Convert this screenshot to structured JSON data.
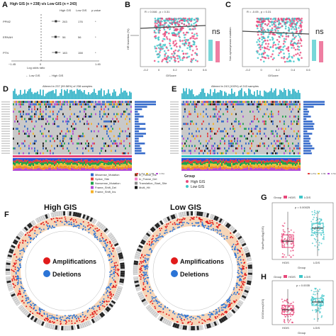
{
  "panel_labels": {
    "a": "A",
    "b": "B",
    "c": "C",
    "d": "D",
    "e": "E",
    "f": "F",
    "g": "G",
    "h": "H"
  },
  "colors": {
    "low_gis": "#3fc6c9",
    "high_gis": "#e8477a",
    "amplifications": "#e11b1b",
    "deletions": "#2b74d6",
    "missense": "#2f66c9",
    "splice": "#e33c3c",
    "nonsense": "#1ea14a",
    "frameshift_del": "#b24bd6",
    "frameshift_ins": "#f5b025",
    "inframe_ins": "#7a3f18",
    "inframe_del": "#f47fc8",
    "translation_start": "#888888",
    "multi_hit": "#111111"
  },
  "panel_a": {
    "title": "High GIS (n = 238) v/s Low GIS (n = 243)",
    "headers": [
      "High GIS",
      "Low GIS",
      "p-value"
    ],
    "genes": [
      "PPM2",
      "ERNAH",
      "PTN"
    ],
    "high_values": [
      "263",
      "56",
      "183"
    ],
    "low_values": [
      "176",
      "56",
      "158"
    ],
    "pvalues": [
      "*",
      "*",
      "*"
    ],
    "axis_left": "−1.45",
    "axis_right": "1.45",
    "axis_zero": "0",
    "xlabel": "Log odds ratio",
    "legend_low": "← Low GIS",
    "legend_high": "→ High GIS"
  },
  "panel_b": {
    "stat": "R = 0.046 , p = 0.31",
    "ylabel": "HR Insertion (%)",
    "xlabel": "GIScore",
    "ns": "ns",
    "xticks": [
      "-0.2",
      "0",
      "0.2",
      "0.4",
      "0.6"
    ]
  },
  "panel_c": {
    "stat": "R = -0.05 , p = 0.31",
    "ylabel": "Non-synonymous mutation",
    "xlabel": "GIScore",
    "ns": "ns",
    "xticks": [
      "-0.2",
      "0",
      "0.2",
      "0.4",
      "0.6"
    ]
  },
  "panel_d": {
    "title": "Altered in 237 (99.58%) of 238 samples"
  },
  "panel_e": {
    "title": "Altered in 243 (100%) of 243 samples"
  },
  "legend_mut": [
    "Missense_Mutation",
    "Splice_Site",
    "Nonsense_Mutation",
    "Frame_Shift_Del",
    "Frame_Shift_Ins",
    "In_Frame_Ins",
    "In_Frame_Del",
    "Translation_Start_Site",
    "Multi_Hit"
  ],
  "legend_group": {
    "title": "Group",
    "items": [
      "High GIS",
      "Low GIS"
    ]
  },
  "legend_sub": [
    "C>A",
    "C>G",
    "C>T",
    "T>A",
    "T>C",
    "T>G"
  ],
  "panel_f": {
    "left_title": "High GIS",
    "right_title": "Low GIS",
    "amp": "Amplifications",
    "del": "Deletions"
  },
  "panel_g": {
    "legend_title": "Group",
    "legend_items": [
      "HGIS",
      "LGIS"
    ],
    "pval": "p = 0.00025",
    "ylabel": "MaxPhyloSig(GIS)",
    "xlabel": "Group",
    "xticks": [
      "HGIS",
      "LGIS"
    ]
  },
  "panel_h": {
    "legend_title": "Group",
    "legend_items": [
      "HGIS",
      "LGIS"
    ],
    "pval": "p = 0.0035",
    "ylabel": "GISGenes(GIS)",
    "xlabel": "Group",
    "xticks": [
      "HGIS",
      "LGIS"
    ]
  },
  "chart_data": [
    {
      "type": "forest",
      "panel": "A",
      "genes": [
        "PPM2",
        "ERNAH",
        "PTN"
      ],
      "log_odds_ratio": [
        0.02,
        0.01,
        0.03
      ],
      "xlim": [
        -1.45,
        1.45
      ]
    },
    {
      "type": "scatter",
      "panel": "B",
      "xlabel": "GIScore",
      "ylabel": "HR Insertion (%)",
      "r": 0.046,
      "p": 0.31,
      "xlim": [
        -0.3,
        0.7
      ]
    },
    {
      "type": "scatter",
      "panel": "C",
      "xlabel": "GIScore",
      "ylabel": "Non-synonymous mutation",
      "r": -0.05,
      "p": 0.31,
      "xlim": [
        -0.3,
        0.7
      ]
    },
    {
      "type": "box",
      "panel": "G",
      "categories": [
        "HGIS",
        "LGIS"
      ],
      "medians": [
        0.35,
        0.62
      ],
      "q1": [
        0.22,
        0.52
      ],
      "q3": [
        0.48,
        0.72
      ],
      "p": 0.00025
    },
    {
      "type": "box",
      "panel": "H",
      "categories": [
        "HGIS",
        "LGIS"
      ],
      "medians": [
        0.38,
        0.6
      ],
      "q1": [
        0.25,
        0.5
      ],
      "q3": [
        0.5,
        0.7
      ],
      "p": 0.0035
    }
  ]
}
